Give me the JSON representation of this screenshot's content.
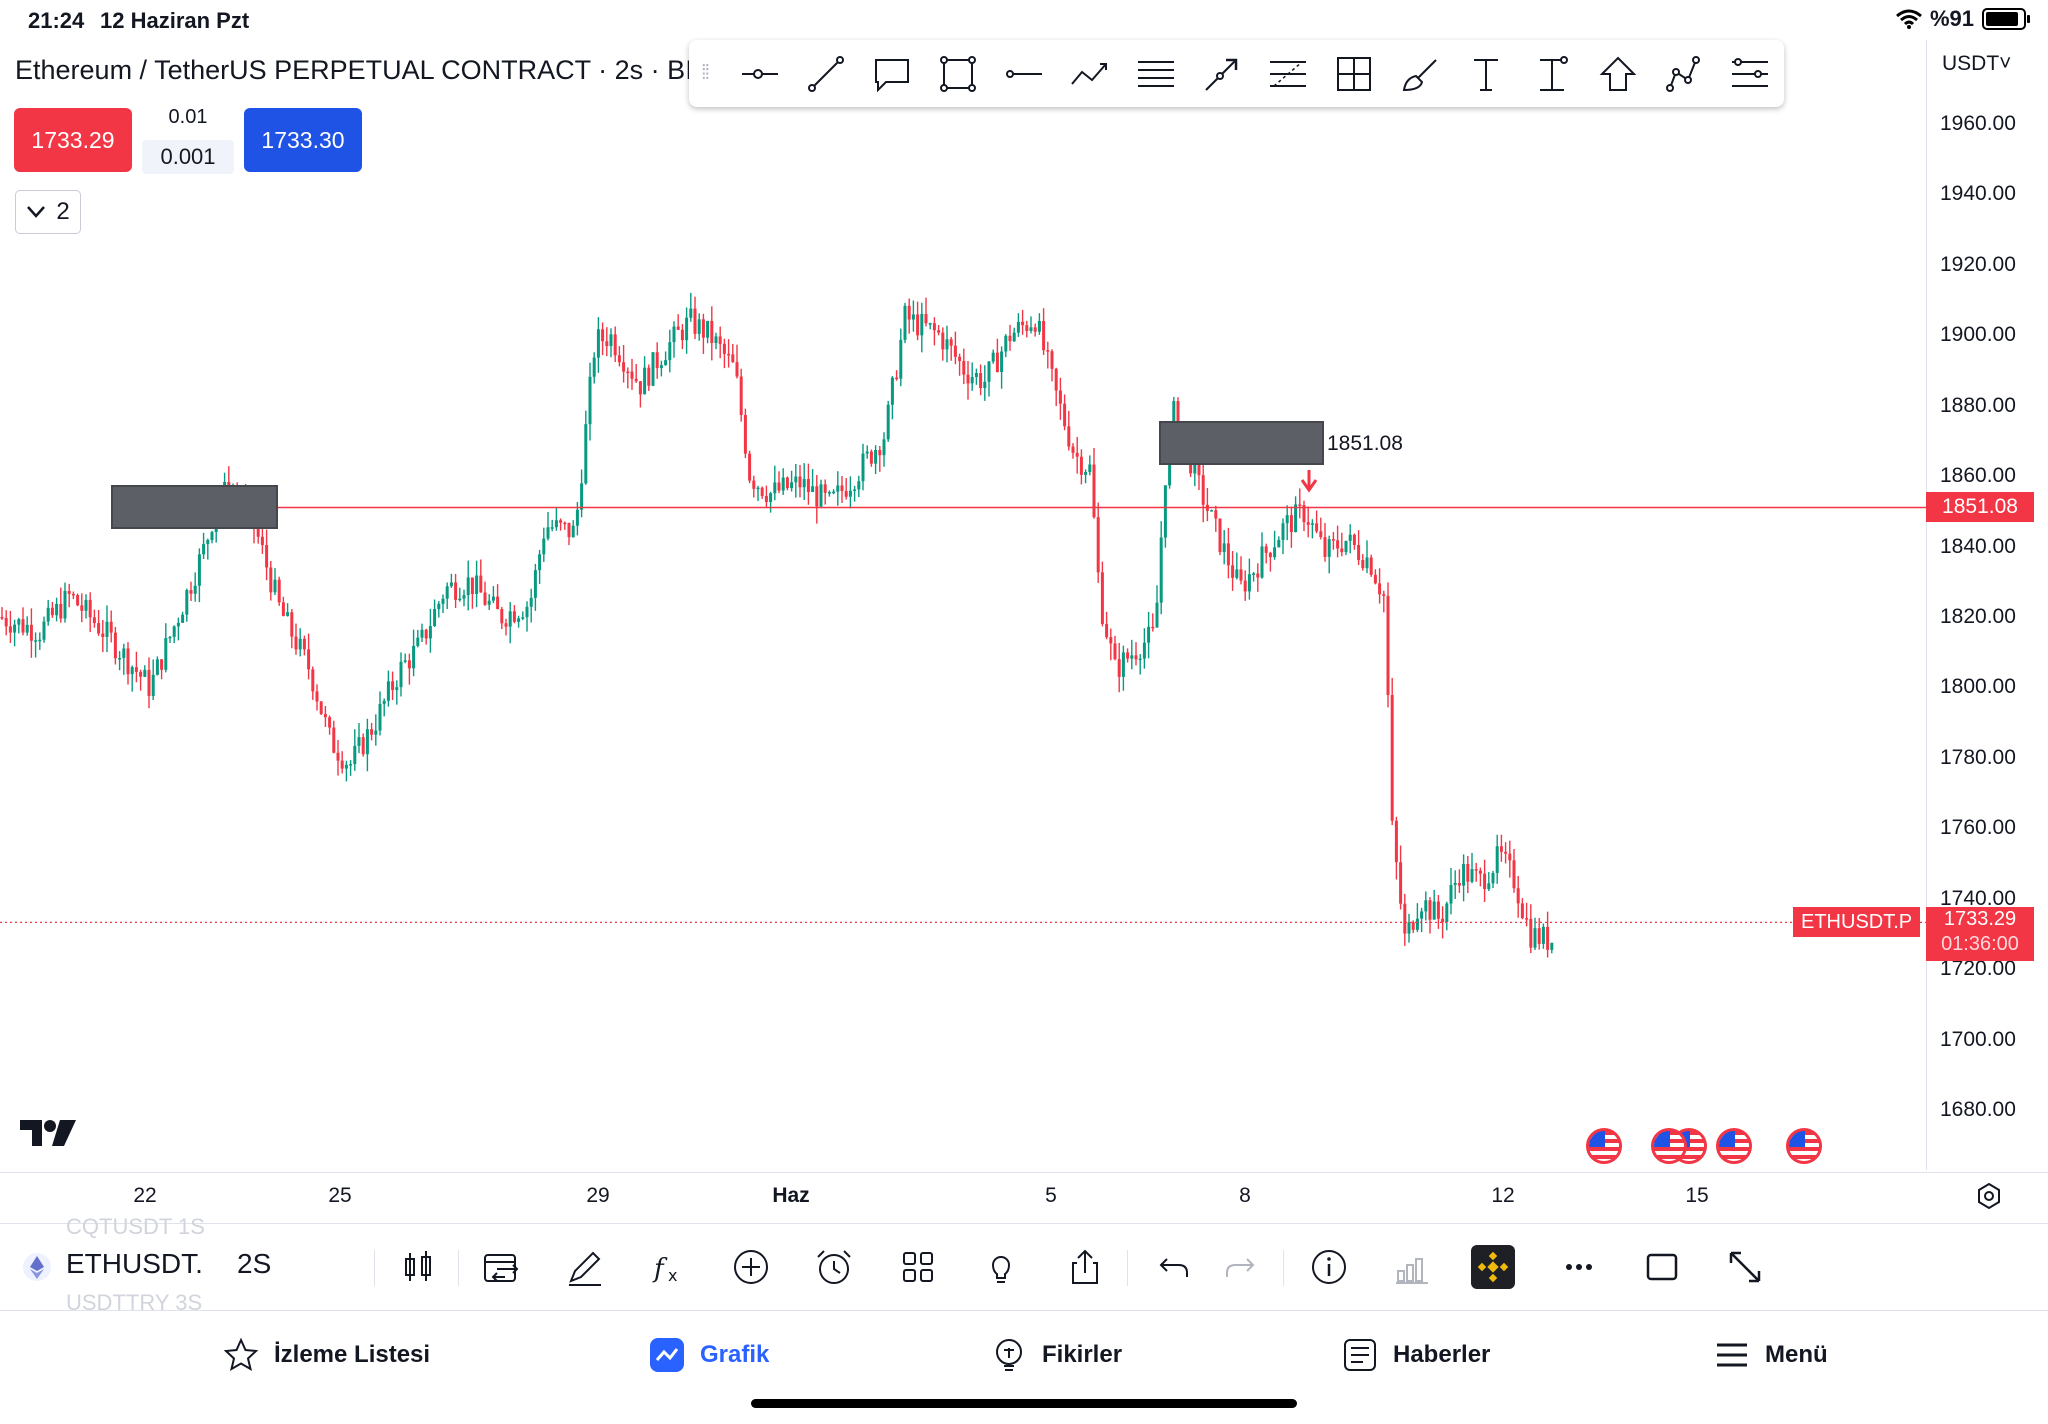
{
  "status_bar": {
    "time": "21:24",
    "date": "12 Haziran Pzt",
    "battery": "%91"
  },
  "chart_title": "Ethereum / TetherUS PERPETUAL CONTRACT · 2s · BI",
  "trade": {
    "sell_price": "1733.29",
    "buy_price": "1733.30",
    "spread_top": "0.01",
    "spread_value": "0.001"
  },
  "collapse": {
    "count": "2"
  },
  "currency": "USDT˅",
  "price_axis": {
    "ticks": [
      "1960.00",
      "1940.00",
      "1920.00",
      "1900.00",
      "1880.00",
      "1860.00",
      "1840.00",
      "1820.00",
      "1800.00",
      "1780.00",
      "1760.00",
      "1740.00",
      "1720.00",
      "1700.00",
      "1680.00"
    ]
  },
  "horizontal_line": {
    "price": "1851.08",
    "color": "#f23645"
  },
  "last_price": {
    "symbol_tag": "ETHUSDT.P",
    "price": "1733.29",
    "countdown": "01:36:00",
    "color": "#f23645"
  },
  "time_axis": {
    "ticks": [
      "22",
      "25",
      "29",
      "Haz",
      "5",
      "8",
      "12",
      "15"
    ]
  },
  "symbol": {
    "name": "ETHUSDT.",
    "interval": "2S",
    "ghost_above": "CQTUSDT      1S",
    "ghost_below": "USDTTRY      3S"
  },
  "tabs": [
    {
      "label": "İzleme Listesi",
      "icon": "star-icon"
    },
    {
      "label": "Grafik",
      "icon": "chart-icon",
      "active": true
    },
    {
      "label": "Fikirler",
      "icon": "lightbulb-icon"
    },
    {
      "label": "Haberler",
      "icon": "news-icon"
    },
    {
      "label": "Menü",
      "icon": "menu-icon"
    }
  ],
  "colors": {
    "up": "#089981",
    "down": "#f23645",
    "accent": "#2962ff"
  }
}
